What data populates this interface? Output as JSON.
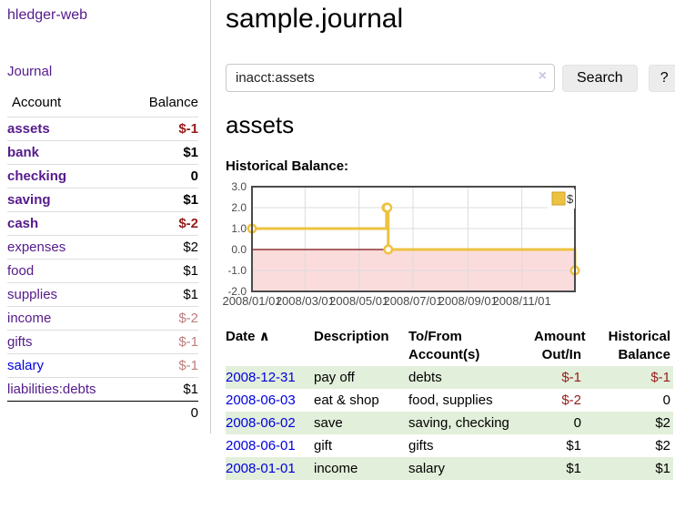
{
  "colors": {
    "purple": "#551a8b",
    "link_blue": "#0000e0",
    "negative": "#961c1c",
    "negative_light": "#bd7e7e",
    "row_green": "#e2efda",
    "chart_line": "#edc240",
    "chart_zero_line": "#7f0d0d",
    "chart_negative_region": "#fbdcdc",
    "chart_grid": "#dcdcdc",
    "chart_border": "#4a4a4a"
  },
  "sidebar": {
    "brand": "hledger-web",
    "journal_link": "Journal",
    "accounts_table": {
      "account_header": "Account",
      "balance_header": "Balance",
      "rows": [
        {
          "name": "assets",
          "balance": "$-1",
          "indent": 1,
          "bold": true,
          "balance_class": "neg",
          "name_color": "purple"
        },
        {
          "name": "bank",
          "balance": "$1",
          "indent": 2,
          "bold": true,
          "balance_class": "",
          "name_color": "purple"
        },
        {
          "name": "checking",
          "balance": "0",
          "indent": 3,
          "bold": true,
          "balance_class": "",
          "name_color": "purple"
        },
        {
          "name": "saving",
          "balance": "$1",
          "indent": 3,
          "bold": true,
          "balance_class": "",
          "name_color": "purple"
        },
        {
          "name": "cash",
          "balance": "$-2",
          "indent": 2,
          "bold": true,
          "balance_class": "neg",
          "name_color": "purple"
        },
        {
          "name": "expenses",
          "balance": "$2",
          "indent": 1,
          "bold": false,
          "balance_class": "",
          "name_color": "purple"
        },
        {
          "name": "food",
          "balance": "$1",
          "indent": 2,
          "bold": false,
          "balance_class": "",
          "name_color": "purple"
        },
        {
          "name": "supplies",
          "balance": "$1",
          "indent": 2,
          "bold": false,
          "balance_class": "",
          "name_color": "purple"
        },
        {
          "name": "income",
          "balance": "$-2",
          "indent": 1,
          "bold": false,
          "balance_class": "neg-light",
          "name_color": "purple"
        },
        {
          "name": "gifts",
          "balance": "$-1",
          "indent": 2,
          "bold": false,
          "balance_class": "neg-light",
          "name_color": "purple"
        },
        {
          "name": "salary",
          "balance": "$-1",
          "indent": 2,
          "bold": false,
          "balance_class": "neg-light",
          "name_color": "blue"
        },
        {
          "name": "liabilities:debts",
          "balance": "$1",
          "indent": 1,
          "bold": false,
          "balance_class": "",
          "name_color": "purple"
        }
      ],
      "total": "0"
    }
  },
  "main": {
    "title": "sample.journal",
    "search": {
      "value": "inacct:assets",
      "clear_icon": "×",
      "search_button": "Search",
      "help_button": "?"
    },
    "account_heading": "assets",
    "chart_heading": "Historical Balance:"
  },
  "chart_data": {
    "type": "line",
    "title": "Historical Balance:",
    "style": "steps",
    "series": [
      {
        "name": "$",
        "color": "#edc240",
        "points": [
          {
            "date": "2008-01-01",
            "value": 1
          },
          {
            "date": "2008-06-01",
            "value": 2
          },
          {
            "date": "2008-06-02",
            "value": 2
          },
          {
            "date": "2008-06-03",
            "value": 0
          },
          {
            "date": "2008-12-31",
            "value": -1
          }
        ]
      }
    ],
    "x_ticks": [
      "2008/01/01",
      "2008/03/01",
      "2008/05/01",
      "2008/07/01",
      "2008/09/01",
      "2008/11/01"
    ],
    "y_ticks": [
      3.0,
      2.0,
      1.0,
      0.0,
      -1.0,
      -2.0
    ],
    "xlim": [
      "2008-01-01",
      "2008-12-31"
    ],
    "ylim": [
      -2,
      3
    ],
    "grid": true,
    "legend": {
      "label": "$",
      "position": "top-right"
    },
    "negative_region": true
  },
  "register": {
    "sort_icon": "∧",
    "headers": [
      {
        "label": "Date",
        "align": "left",
        "sortable": true
      },
      {
        "label": "Description",
        "align": "left"
      },
      {
        "label": "To/From Account(s)",
        "align": "left"
      },
      {
        "label": "Amount Out/In",
        "align": "right"
      },
      {
        "label": "Historical Balance",
        "align": "right"
      }
    ],
    "rows": [
      {
        "date": "2008-12-31",
        "description": "pay off",
        "accounts": "debts",
        "amount": "$-1",
        "amount_class": "neg",
        "balance": "$-1",
        "balance_class": "neg",
        "green": true
      },
      {
        "date": "2008-06-03",
        "description": "eat & shop",
        "accounts": "food, supplies",
        "amount": "$-2",
        "amount_class": "neg",
        "balance": "0",
        "balance_class": "",
        "green": false
      },
      {
        "date": "2008-06-02",
        "description": "save",
        "accounts": "saving, checking",
        "amount": "0",
        "amount_class": "",
        "balance": "$2",
        "balance_class": "",
        "green": true
      },
      {
        "date": "2008-06-01",
        "description": "gift",
        "accounts": "gifts",
        "amount": "$1",
        "amount_class": "",
        "balance": "$2",
        "balance_class": "",
        "green": false
      },
      {
        "date": "2008-01-01",
        "description": "income",
        "accounts": "salary",
        "amount": "$1",
        "amount_class": "",
        "balance": "$1",
        "balance_class": "",
        "green": true
      }
    ]
  }
}
